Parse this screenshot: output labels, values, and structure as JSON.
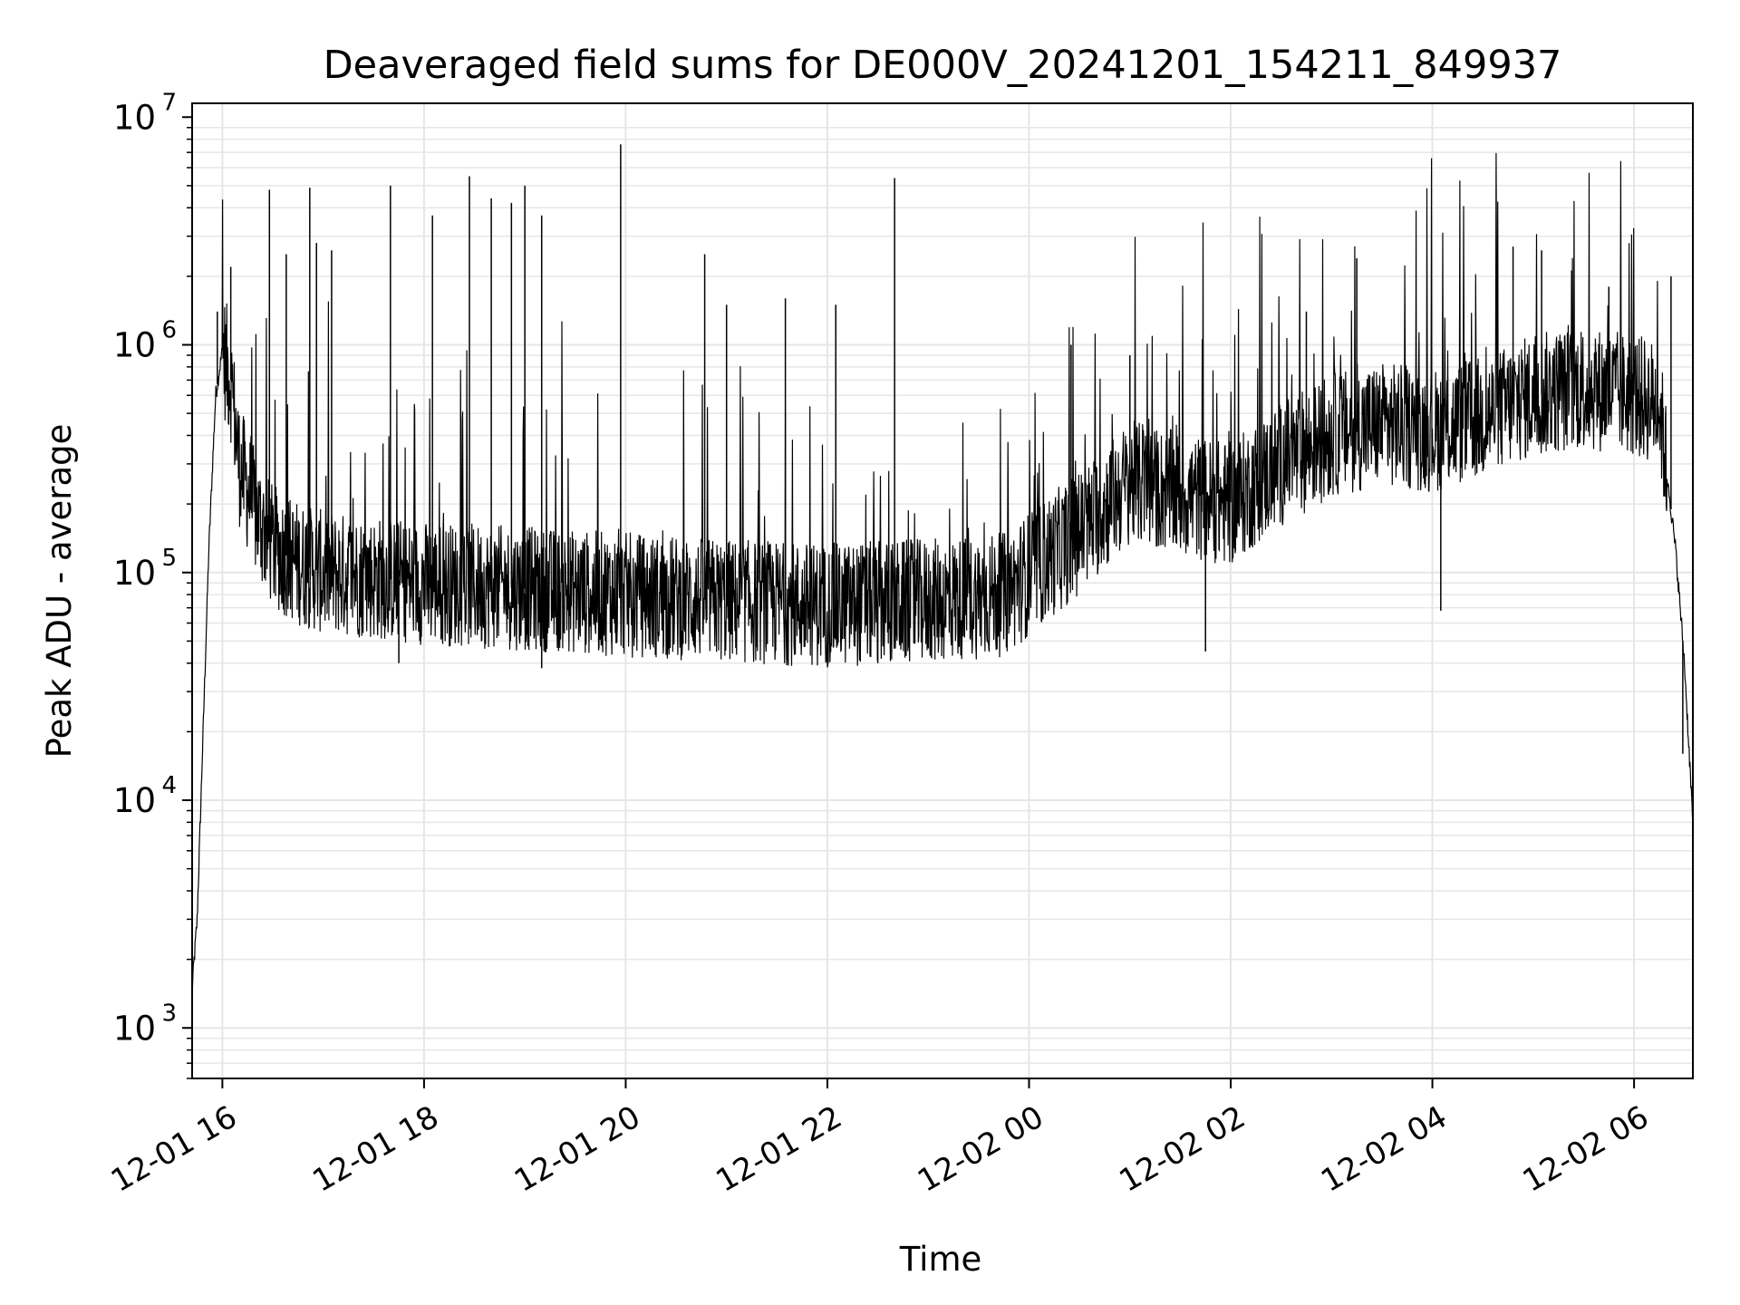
{
  "chart_data": {
    "type": "line",
    "title": "Deaveraged field sums for DE000V_20241201_154211_849937",
    "xlabel": "Time",
    "ylabel": "Peak ADU - average",
    "yscale": "log",
    "ylim": [
      600,
      11500000
    ],
    "xlim": [
      "2024-12-01 15:42",
      "2024-12-02 06:35"
    ],
    "grid": true,
    "line_color": "#000000",
    "grid_color": "#e6e6e6",
    "x_ticks": [
      {
        "label": "12-01 16",
        "value": "2024-12-01 16:00"
      },
      {
        "label": "12-01 18",
        "value": "2024-12-01 18:00"
      },
      {
        "label": "12-01 20",
        "value": "2024-12-01 20:00"
      },
      {
        "label": "12-01 22",
        "value": "2024-12-01 22:00"
      },
      {
        "label": "12-02 00",
        "value": "2024-12-02 00:00"
      },
      {
        "label": "12-02 02",
        "value": "2024-12-02 02:00"
      },
      {
        "label": "12-02 04",
        "value": "2024-12-02 04:00"
      },
      {
        "label": "12-02 06",
        "value": "2024-12-02 06:00"
      }
    ],
    "y_ticks": [
      {
        "base": "10",
        "exp": "3",
        "value": 1000
      },
      {
        "base": "10",
        "exp": "4",
        "value": 10000
      },
      {
        "base": "10",
        "exp": "5",
        "value": 100000
      },
      {
        "base": "10",
        "exp": "6",
        "value": 1000000
      },
      {
        "base": "10",
        "exp": "7",
        "value": 10000000
      }
    ],
    "series": [
      {
        "x": [
          "2024-12-01 15:42",
          "2024-12-01 15:45",
          "2024-12-01 15:48",
          "2024-12-01 15:52",
          "2024-12-01 15:56",
          "2024-12-01 16:00",
          "2024-12-01 16:05",
          "2024-12-01 16:10",
          "2024-12-01 16:20",
          "2024-12-01 16:30",
          "2024-12-01 16:45",
          "2024-12-01 17:00",
          "2024-12-01 17:30",
          "2024-12-01 18:00",
          "2024-12-01 19:00",
          "2024-12-01 20:00",
          "2024-12-01 21:00",
          "2024-12-01 22:00",
          "2024-12-01 23:00",
          "2024-12-01 23:45",
          "2024-12-02 00:30",
          "2024-12-02 01:00",
          "2024-12-02 01:30",
          "2024-12-02 02:00",
          "2024-12-02 02:30",
          "2024-12-02 03:00",
          "2024-12-02 03:30",
          "2024-12-02 04:00",
          "2024-12-02 04:30",
          "2024-12-02 05:00",
          "2024-12-02 05:30",
          "2024-12-02 06:00",
          "2024-12-02 06:15",
          "2024-12-02 06:25",
          "2024-12-02 06:30",
          "2024-12-02 06:35"
        ],
        "values": [
          1500,
          3000,
          15000,
          130000,
          600000,
          950000,
          700000,
          300000,
          180000,
          130000,
          110000,
          100000,
          95000,
          90000,
          85000,
          80000,
          75000,
          72000,
          75000,
          80000,
          150000,
          250000,
          220000,
          200000,
          300000,
          400000,
          450000,
          420000,
          480000,
          600000,
          650000,
          600000,
          550000,
          120000,
          40000,
          8000
        ]
      }
    ],
    "spikes": [
      {
        "x": "2024-12-01 16:28",
        "y": 4800000
      },
      {
        "x": "2024-12-01 16:38",
        "y": 2500000
      },
      {
        "x": "2024-12-01 16:52",
        "y": 4900000
      },
      {
        "x": "2024-12-01 16:56",
        "y": 2800000
      },
      {
        "x": "2024-12-01 17:05",
        "y": 2600000
      },
      {
        "x": "2024-12-01 17:40",
        "y": 5000000
      },
      {
        "x": "2024-12-01 18:05",
        "y": 3700000
      },
      {
        "x": "2024-12-01 18:27",
        "y": 5500000
      },
      {
        "x": "2024-12-01 18:40",
        "y": 4400000
      },
      {
        "x": "2024-12-01 18:52",
        "y": 4200000
      },
      {
        "x": "2024-12-01 19:00",
        "y": 5000000
      },
      {
        "x": "2024-12-01 19:10",
        "y": 3700000
      },
      {
        "x": "2024-12-01 19:57",
        "y": 7600000
      },
      {
        "x": "2024-12-01 20:47",
        "y": 2500000
      },
      {
        "x": "2024-12-01 22:40",
        "y": 5400000
      },
      {
        "x": "2024-12-01 21:35",
        "y": 1600000
      },
      {
        "x": "2024-12-01 21:00",
        "y": 1500000
      },
      {
        "x": "2024-12-01 22:05",
        "y": 1500000
      },
      {
        "x": "2024-12-01 15:57",
        "y": 1400000
      },
      {
        "x": "2024-12-01 16:05",
        "y": 2200000
      },
      {
        "x": "2024-12-02 03:15",
        "y": 2400000
      },
      {
        "x": "2024-12-02 04:48",
        "y": 2700000
      },
      {
        "x": "2024-12-02 05:05",
        "y": 2600000
      },
      {
        "x": "2024-12-02 05:45",
        "y": 1800000
      },
      {
        "x": "2024-12-02 06:22",
        "y": 2000000
      },
      {
        "x": "2024-12-02 02:45",
        "y": 1400000
      },
      {
        "x": "2024-12-02 01:00",
        "y": 900000
      },
      {
        "x": "2024-12-02 00:25",
        "y": 1000000
      }
    ],
    "dips": [
      {
        "x": "2024-12-01 17:45",
        "y": 40000
      },
      {
        "x": "2024-12-01 19:10",
        "y": 38000
      },
      {
        "x": "2024-12-01 22:30",
        "y": 40000
      },
      {
        "x": "2024-12-02 01:45",
        "y": 45000
      },
      {
        "x": "2024-12-02 04:05",
        "y": 68000
      },
      {
        "x": "2024-12-02 06:29",
        "y": 16000
      }
    ]
  }
}
